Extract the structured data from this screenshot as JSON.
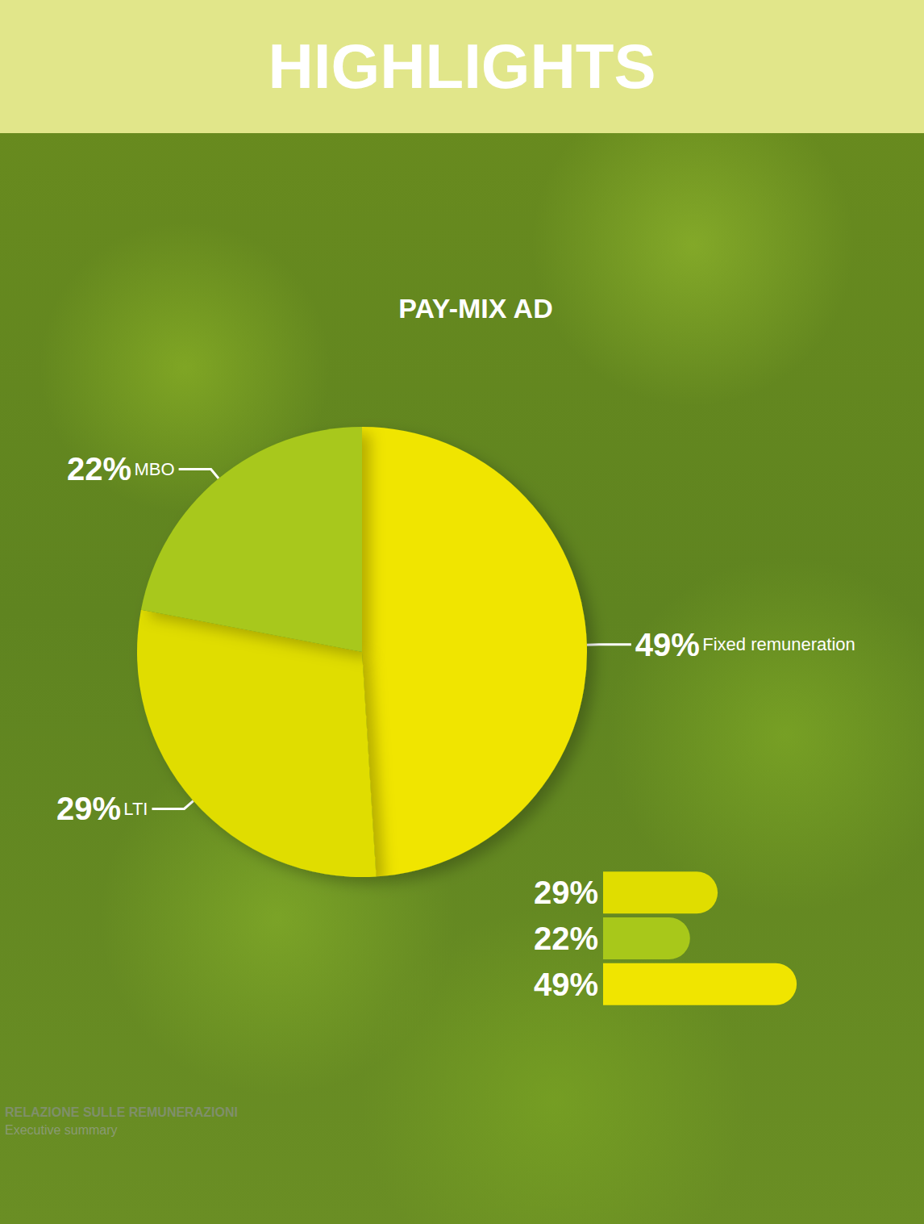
{
  "header": "HIGHLIGHTS",
  "footer": {
    "title": "RELAZIONE SULLE REMUNERAZIONI",
    "subtitle": "Executive summary"
  },
  "chart_data": [
    {
      "type": "pie",
      "title": "PAY-MIX AD",
      "categories": [
        "Fixed remuneration",
        "LTI",
        "MBO"
      ],
      "values": [
        49,
        29,
        22
      ],
      "value_labels": [
        "49%",
        "29%",
        "22%"
      ],
      "colors": [
        "#f0e500",
        "#e0dd00",
        "#a8c81a"
      ],
      "data_labels": true
    },
    {
      "type": "bar",
      "orientation": "horizontal",
      "categories": [
        null,
        null,
        null
      ],
      "values": [
        29,
        22,
        49
      ],
      "value_labels": [
        "29%",
        "22%",
        "49%"
      ],
      "colors": [
        "#e0dd00",
        "#a8c81a",
        "#f0e500"
      ],
      "xlim": [
        0,
        50
      ],
      "tick_labels": false,
      "data_labels": true
    }
  ]
}
